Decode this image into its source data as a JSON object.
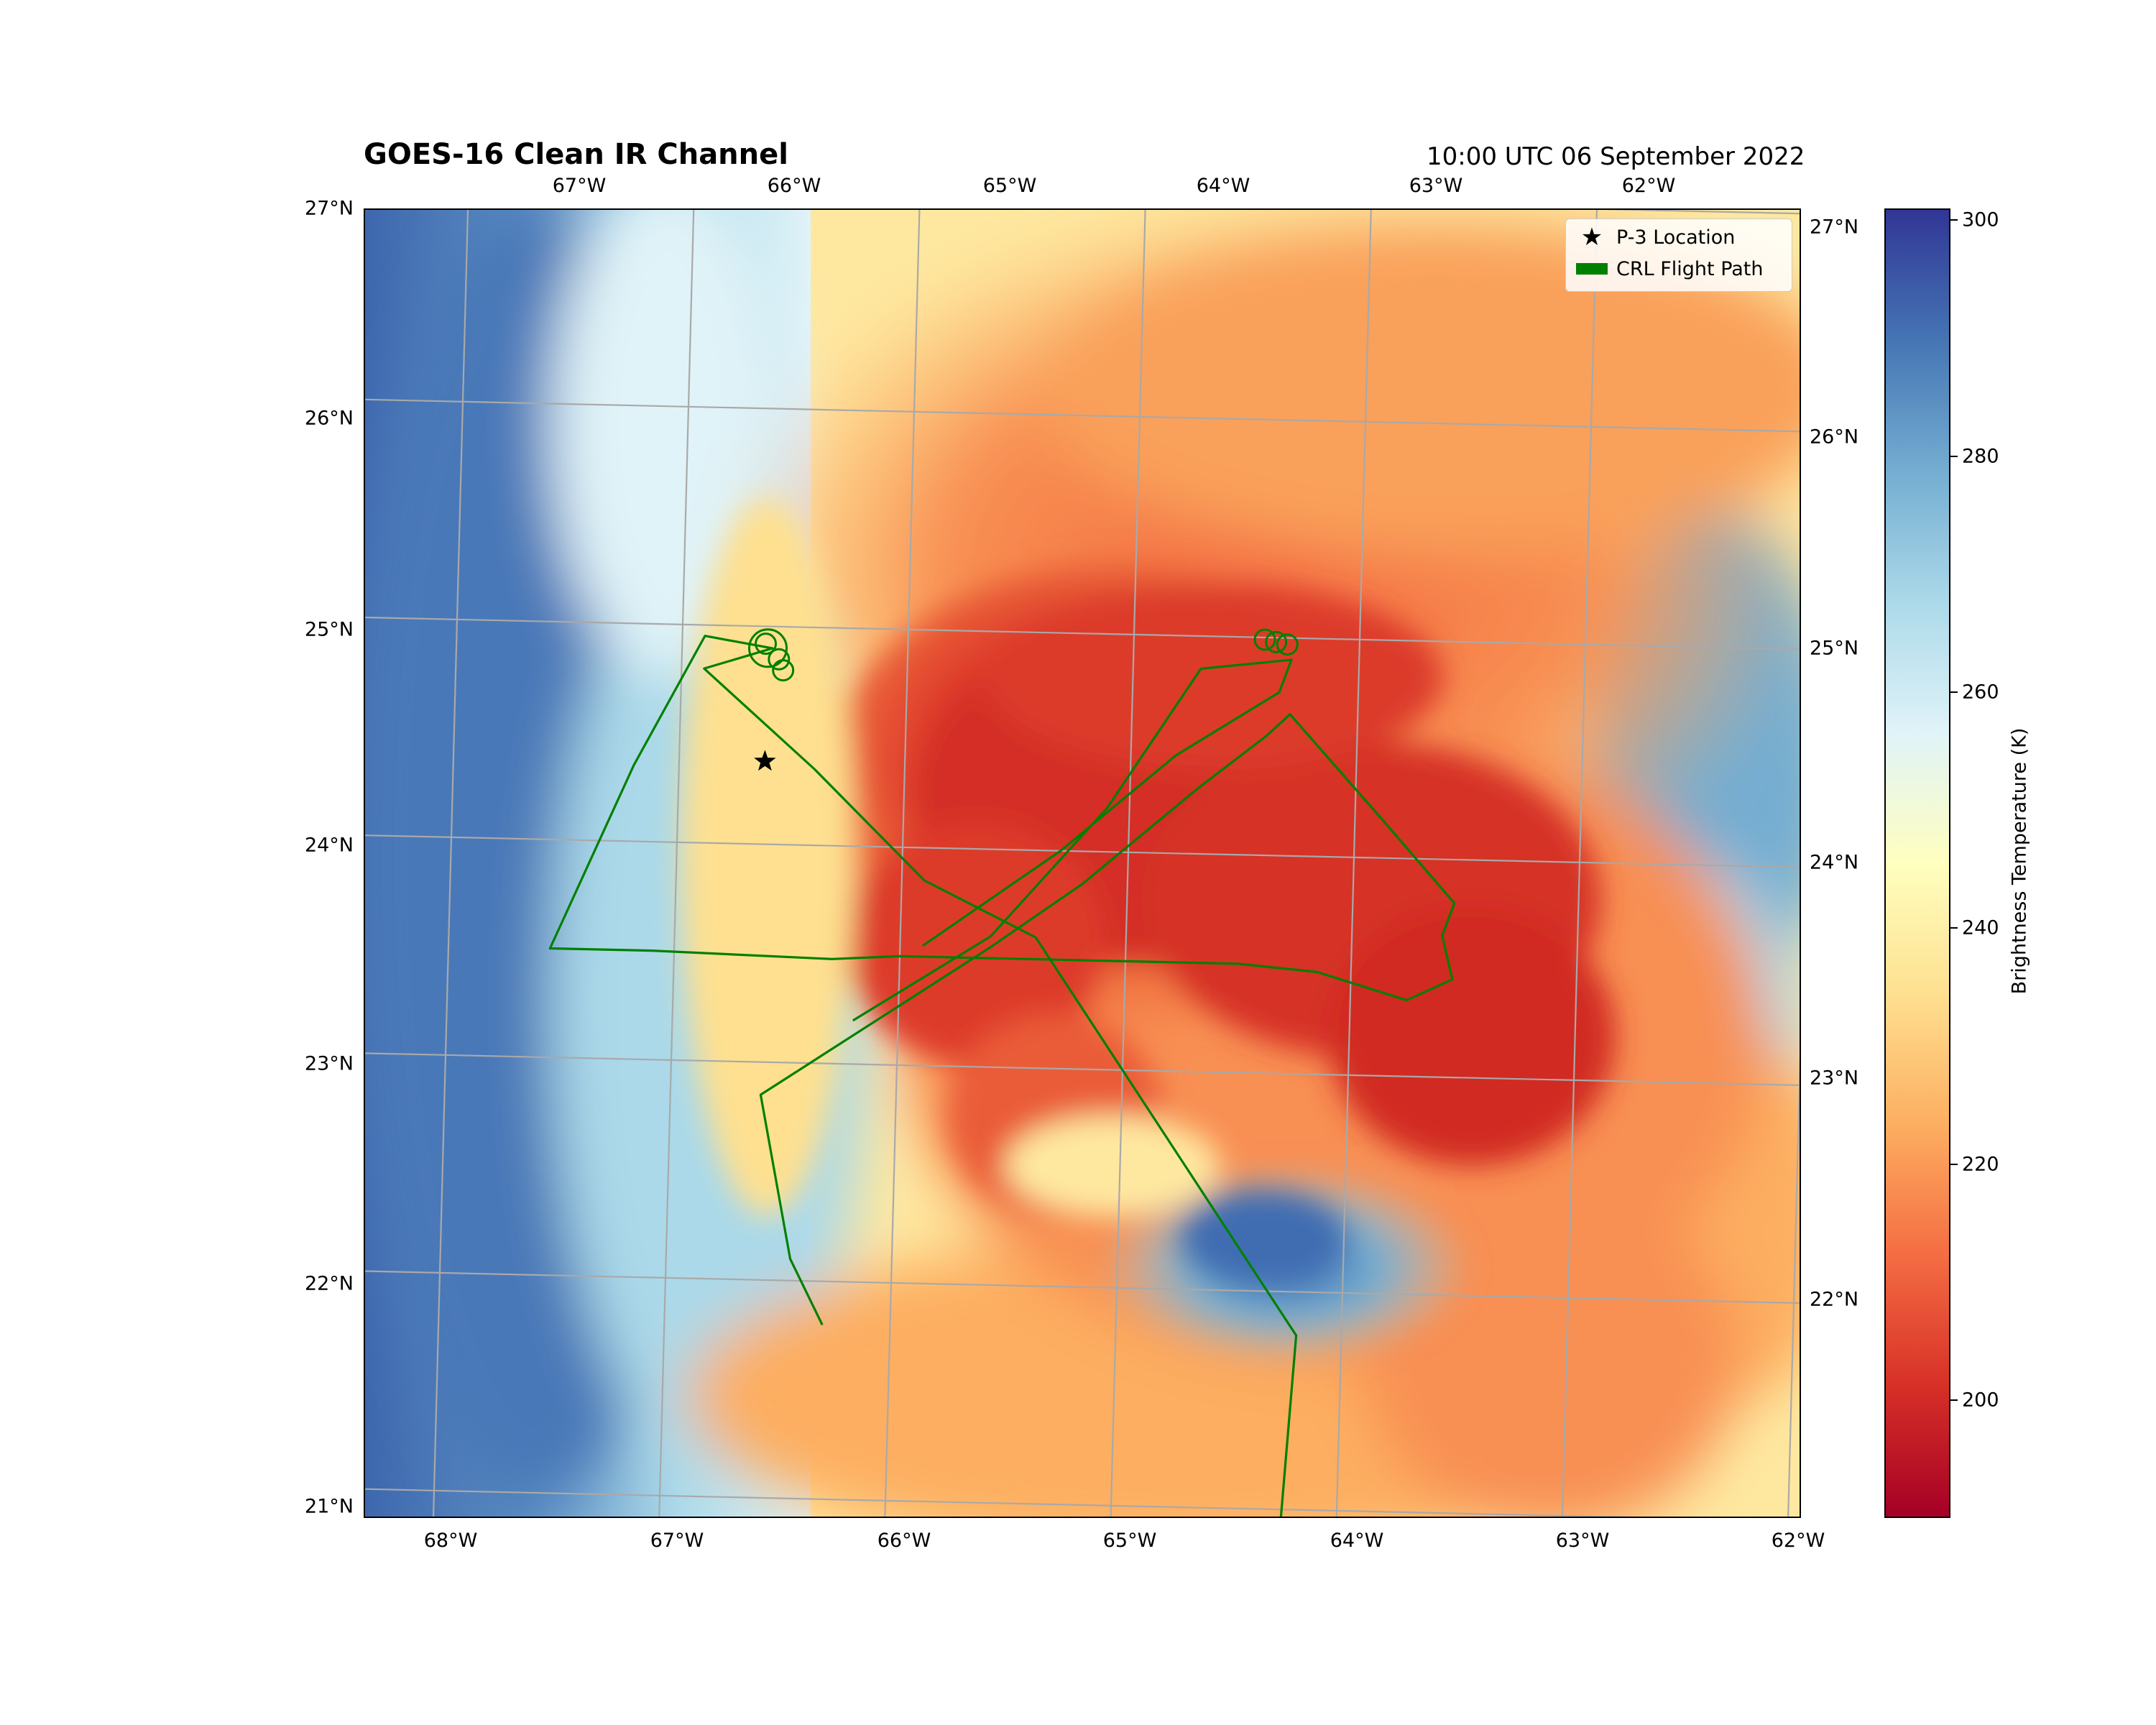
{
  "title": "GOES-16 Clean IR Channel",
  "subtitle": "10:00 UTC 06 September 2022",
  "map": {
    "bottom_lon_labels": [
      "68°W",
      "67°W",
      "66°W",
      "65°W",
      "64°W",
      "63°W",
      "62°W"
    ],
    "top_lon_labels": [
      "67°W",
      "66°W",
      "65°W",
      "64°W",
      "63°W",
      "62°W"
    ],
    "left_lat_labels": [
      "27°N",
      "26°N",
      "25°N",
      "24°N",
      "23°N",
      "22°N",
      "21°N"
    ],
    "right_lat_labels": [
      "27°N",
      "26°N",
      "25°N",
      "24°N",
      "23°N",
      "22°N"
    ],
    "grid": true,
    "projection": "geostationary"
  },
  "legend": {
    "placement": "top-right",
    "items": [
      {
        "label": "P-3 Location",
        "marker": "star",
        "color": "#000000"
      },
      {
        "label": "CRL Flight Path",
        "marker": "line",
        "color": "#008000"
      }
    ]
  },
  "colorbar": {
    "label": "Brightness Temperature (K)",
    "ticks": [
      "300",
      "280",
      "260",
      "240",
      "220",
      "200"
    ],
    "range": [
      190,
      301
    ],
    "colormap": "RdYlBu",
    "colors": [
      "#a50026",
      "#d73027",
      "#f46d43",
      "#fdae61",
      "#fee090",
      "#ffffbf",
      "#e0f3f8",
      "#abd9e9",
      "#74add1",
      "#4575b4",
      "#313695"
    ]
  },
  "p3_location": {
    "lon": -66.62,
    "lat": 24.38
  },
  "flight_path": {
    "color": "#008000",
    "points": [
      [
        -66.3,
        21.8
      ],
      [
        -66.45,
        22.1
      ],
      [
        -66.55,
        22.6
      ],
      [
        -66.6,
        22.85
      ],
      [
        -66.1,
        23.2
      ],
      [
        -65.6,
        23.55
      ],
      [
        -65.2,
        23.85
      ],
      [
        -64.7,
        24.3
      ],
      [
        -64.4,
        24.55
      ],
      [
        -64.3,
        24.65
      ],
      [
        -63.9,
        24.2
      ],
      [
        -63.55,
        23.8
      ],
      [
        -63.6,
        23.65
      ],
      [
        -63.55,
        23.45
      ],
      [
        -63.75,
        23.35
      ],
      [
        -64.15,
        23.47
      ],
      [
        -64.5,
        23.5
      ],
      [
        -65.0,
        23.5
      ],
      [
        -66.0,
        23.5
      ],
      [
        -66.3,
        23.48
      ],
      [
        -67.1,
        23.5
      ],
      [
        -67.55,
        23.5
      ],
      [
        -67.2,
        24.35
      ],
      [
        -66.9,
        24.95
      ],
      [
        -66.6,
        24.9
      ],
      [
        -66.9,
        24.8
      ],
      [
        -66.4,
        24.35
      ],
      [
        -65.9,
        23.85
      ],
      [
        -65.4,
        23.6
      ],
      [
        -64.6,
        22.4
      ],
      [
        -64.2,
        21.8
      ],
      [
        -64.25,
        20.9
      ]
    ],
    "second_leg": [
      [
        -66.2,
        23.2
      ],
      [
        -65.6,
        23.6
      ],
      [
        -65.1,
        24.2
      ],
      [
        -64.7,
        24.85
      ],
      [
        -64.3,
        24.9
      ],
      [
        -64.35,
        24.75
      ],
      [
        -64.8,
        24.45
      ],
      [
        -65.3,
        24.0
      ],
      [
        -65.7,
        23.7
      ],
      [
        -65.9,
        23.55
      ]
    ],
    "loops": [
      {
        "lon": -66.62,
        "lat": 24.9
      },
      {
        "lon": -66.63,
        "lat": 24.92
      },
      {
        "lon": -66.57,
        "lat": 24.85
      },
      {
        "lon": -66.55,
        "lat": 24.8
      },
      {
        "lon": -64.42,
        "lat": 24.99
      },
      {
        "lon": -64.37,
        "lat": 24.98
      },
      {
        "lon": -64.32,
        "lat": 24.97
      }
    ]
  }
}
